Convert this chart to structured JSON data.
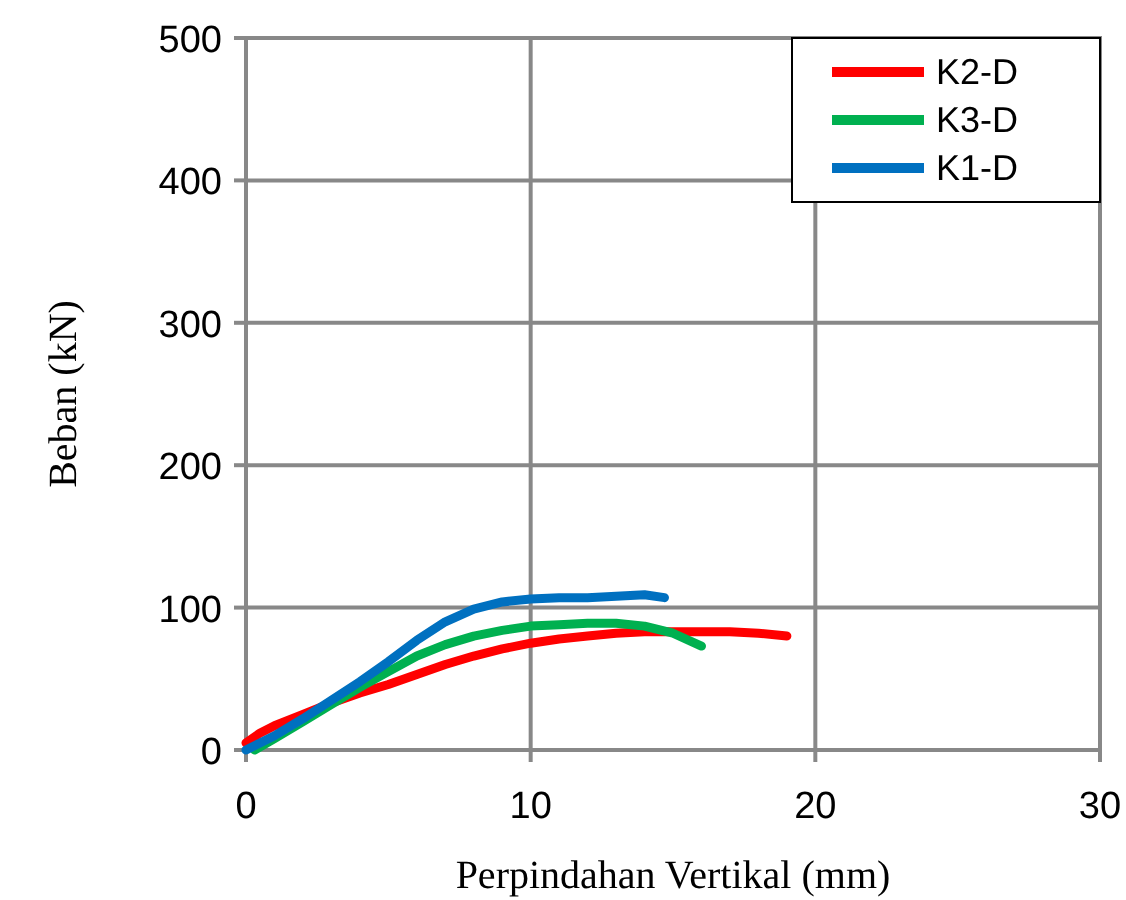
{
  "chart_data": {
    "type": "line",
    "xlabel": "Perpindahan Vertikal (mm)",
    "ylabel": "Beban (kN)",
    "xlim": [
      0,
      30
    ],
    "xticks": [
      0,
      10,
      20,
      30
    ],
    "ylim": [
      0,
      500
    ],
    "yticks": [
      0,
      100,
      200,
      300,
      400,
      500
    ],
    "grid": true,
    "legend": "top right",
    "marker": "none",
    "series": [
      {
        "name": "K2-D",
        "color": "#ff0000",
        "x": [
          0,
          0.5,
          1,
          2,
          3,
          4,
          5,
          6,
          7,
          8,
          9,
          10,
          11,
          12,
          13,
          14,
          15,
          16,
          17,
          18,
          19
        ],
        "values": [
          5,
          12,
          17,
          25,
          33,
          40,
          46,
          53,
          60,
          66,
          71,
          75,
          78,
          80,
          82,
          83,
          83,
          83,
          83,
          82,
          80
        ]
      },
      {
        "name": "K3-D",
        "color": "#00b050",
        "x": [
          0.3,
          1,
          2,
          3,
          4,
          5,
          6,
          7,
          8,
          9,
          10,
          11,
          12,
          13,
          14,
          15,
          16
        ],
        "values": [
          0,
          8,
          20,
          32,
          44,
          55,
          66,
          74,
          80,
          84,
          87,
          88,
          89,
          89,
          87,
          82,
          73
        ]
      },
      {
        "name": "K1-D",
        "color": "#0070c0",
        "x": [
          0,
          1,
          2,
          3,
          4,
          5,
          6,
          7,
          8,
          9,
          10,
          11,
          12,
          13,
          14,
          14.7
        ],
        "values": [
          0,
          10,
          22,
          35,
          48,
          62,
          77,
          90,
          99,
          104,
          106,
          107,
          107,
          108,
          109,
          107
        ]
      }
    ]
  }
}
